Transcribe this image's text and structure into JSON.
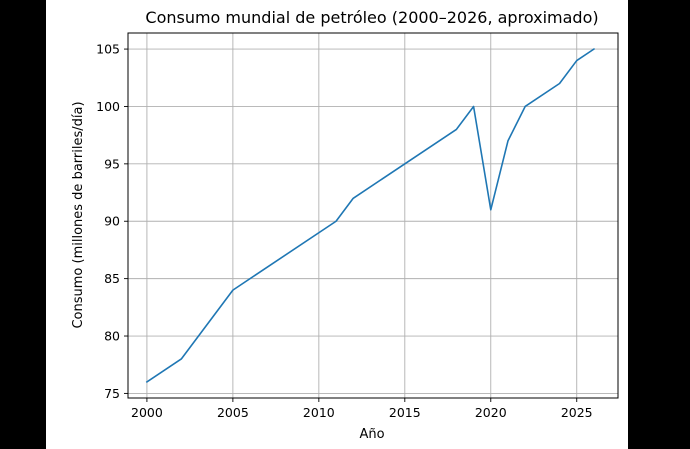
{
  "chart_data": {
    "type": "line",
    "title": "Consumo mundial de petróleo (2000–2026, aproximado)",
    "xlabel": "Año",
    "ylabel": "Consumo (millones de barriles/día)",
    "xlim": [
      1998.9,
      2027.4
    ],
    "ylim": [
      74.6,
      106.4
    ],
    "xticks": [
      2000,
      2005,
      2010,
      2015,
      2020,
      2025
    ],
    "yticks": [
      75,
      80,
      85,
      90,
      95,
      100,
      105
    ],
    "grid": true,
    "series": [
      {
        "color": "#1f77b4",
        "x": [
          2000,
          2002,
          2005,
          2011,
          2012,
          2018,
          2019,
          2020,
          2021,
          2022,
          2024,
          2025,
          2026
        ],
        "y": [
          76,
          78,
          84,
          90,
          92,
          98,
          100,
          91,
          97,
          100,
          102,
          104,
          105
        ]
      }
    ]
  }
}
